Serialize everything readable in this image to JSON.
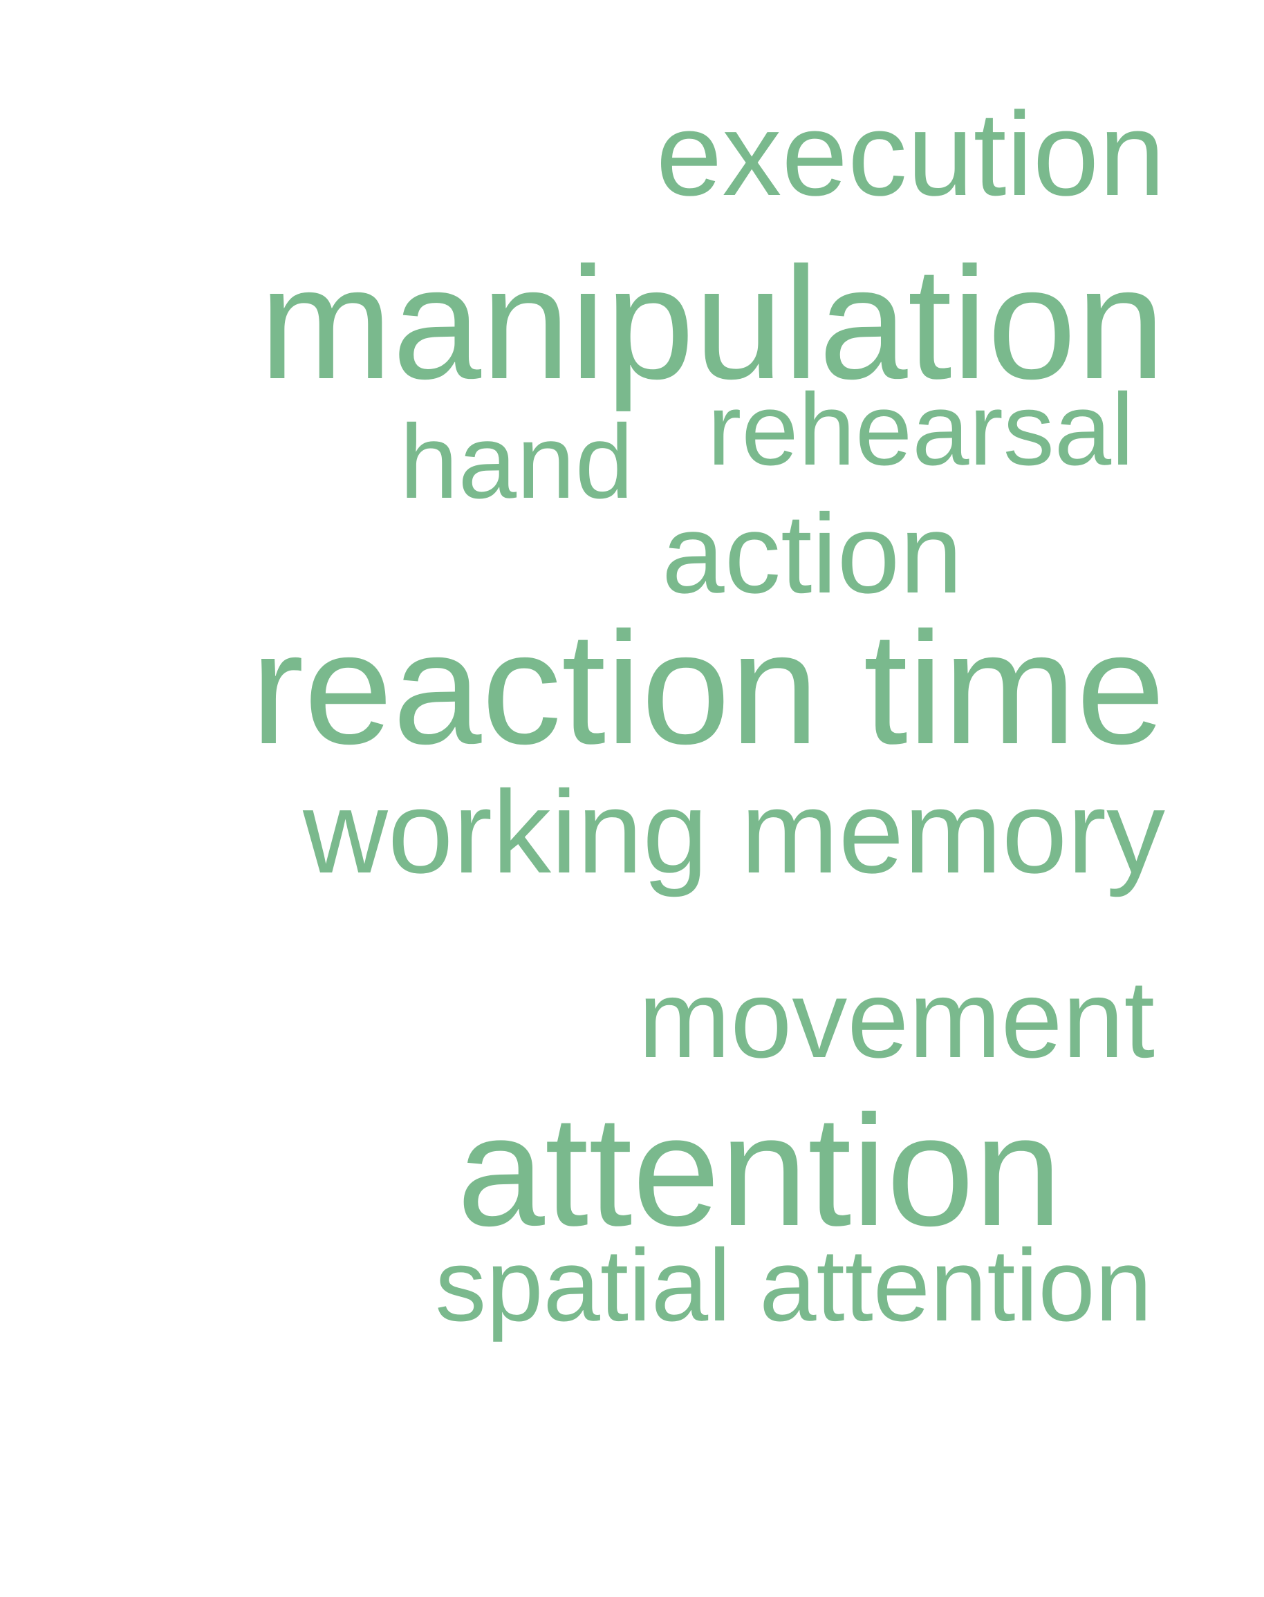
{
  "colors": {
    "word": "#7ab98d",
    "background": "#ffffff"
  },
  "words": [
    {
      "text": "execution"
    },
    {
      "text": "manipulation"
    },
    {
      "text": "rehearsal"
    },
    {
      "text": "hand"
    },
    {
      "text": "action"
    },
    {
      "text": "reaction time"
    },
    {
      "text": "working memory"
    },
    {
      "text": "movement"
    },
    {
      "text": "attention"
    },
    {
      "text": "spatial attention"
    }
  ]
}
